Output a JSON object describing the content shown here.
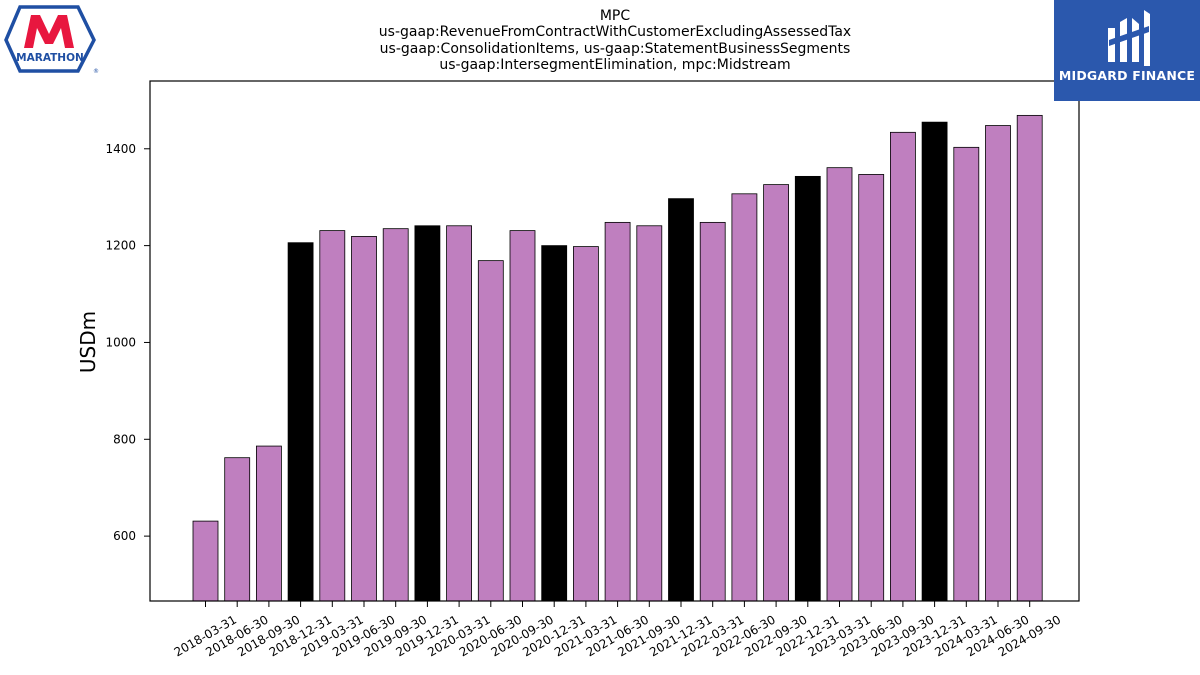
{
  "logos": {
    "left_text": "MARATHON",
    "right_text": "MIDGARD FINANCE"
  },
  "colors": {
    "bar_regular": "#bf7fbf",
    "bar_year_end": "#000000",
    "bar_edge": "#000000",
    "logo_right_bg": "#2b58ad",
    "logo_left_red": "#e8173f",
    "logo_left_blue": "#1f4fa3"
  },
  "chart_data": {
    "type": "bar",
    "title": [
      "MPC",
      "us-gaap:RevenueFromContractWithCustomerExcludingAssessedTax",
      "us-gaap:ConsolidationItems, us-gaap:StatementBusinessSegments",
      "us-gaap:IntersegmentElimination, mpc:Midstream"
    ],
    "xlabel": "",
    "ylabel": "USDm",
    "ylim": [
      466,
      1540
    ],
    "yticks": [
      600,
      800,
      1000,
      1200,
      1400
    ],
    "grid": false,
    "categories": [
      "2018-03-31",
      "2018-06-30",
      "2018-09-30",
      "2018-12-31",
      "2019-03-31",
      "2019-06-30",
      "2019-09-30",
      "2019-12-31",
      "2020-03-31",
      "2020-06-30",
      "2020-09-30",
      "2020-12-31",
      "2021-03-31",
      "2021-06-30",
      "2021-09-30",
      "2021-12-31",
      "2022-03-31",
      "2022-06-30",
      "2022-09-30",
      "2022-12-31",
      "2023-03-31",
      "2023-06-30",
      "2023-09-30",
      "2023-12-31",
      "2024-03-31",
      "2024-06-30",
      "2024-09-30"
    ],
    "values": [
      631,
      762,
      786,
      1206,
      1231,
      1219,
      1235,
      1241,
      1241,
      1169,
      1231,
      1200,
      1198,
      1248,
      1241,
      1297,
      1248,
      1307,
      1326,
      1343,
      1361,
      1347,
      1434,
      1455,
      1403,
      1448,
      1469
    ],
    "year_end_highlight": true
  }
}
